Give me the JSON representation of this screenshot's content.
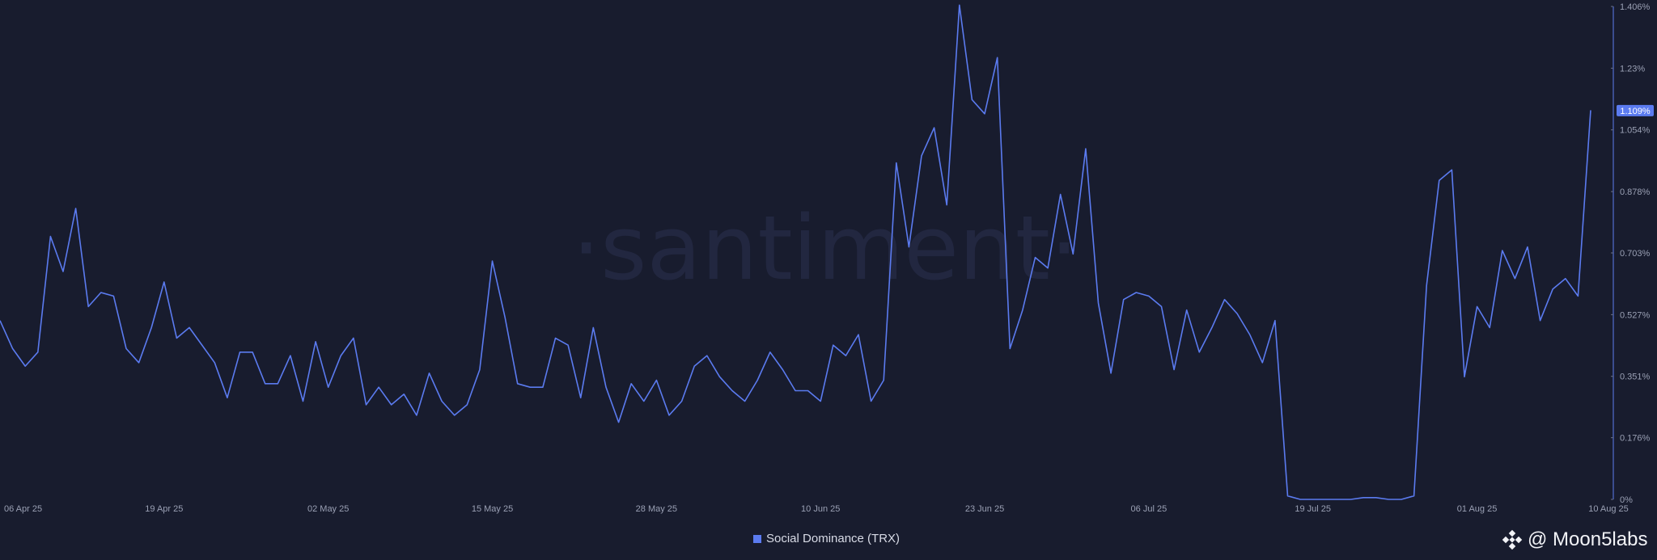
{
  "chart_data": {
    "type": "line",
    "title": "",
    "watermark": "·santiment·",
    "series": [
      {
        "name": "Social Dominance (TRX)",
        "color": "#5b7bf0",
        "values": [
          0.51,
          0.43,
          0.38,
          0.42,
          0.75,
          0.65,
          0.83,
          0.55,
          0.59,
          0.58,
          0.43,
          0.39,
          0.49,
          0.62,
          0.46,
          0.49,
          0.44,
          0.39,
          0.29,
          0.42,
          0.42,
          0.33,
          0.33,
          0.41,
          0.28,
          0.45,
          0.32,
          0.41,
          0.46,
          0.27,
          0.32,
          0.27,
          0.3,
          0.24,
          0.36,
          0.28,
          0.24,
          0.27,
          0.37,
          0.68,
          0.52,
          0.33,
          0.32,
          0.32,
          0.46,
          0.44,
          0.29,
          0.49,
          0.32,
          0.22,
          0.33,
          0.28,
          0.34,
          0.24,
          0.28,
          0.38,
          0.41,
          0.35,
          0.31,
          0.28,
          0.34,
          0.42,
          0.37,
          0.31,
          0.31,
          0.28,
          0.44,
          0.41,
          0.47,
          0.28,
          0.34,
          0.96,
          0.72,
          0.98,
          1.06,
          0.84,
          1.41,
          1.14,
          1.1,
          1.26,
          0.43,
          0.54,
          0.69,
          0.66,
          0.87,
          0.7,
          1.0,
          0.56,
          0.36,
          0.57,
          0.59,
          0.58,
          0.55,
          0.37,
          0.54,
          0.42,
          0.49,
          0.57,
          0.53,
          0.47,
          0.39,
          0.51,
          0.01,
          0.0,
          0.0,
          0.0,
          0.0,
          0.0,
          0.005,
          0.005,
          0.0,
          0.0,
          0.01,
          0.61,
          0.91,
          0.94,
          0.35,
          0.55,
          0.49,
          0.71,
          0.63,
          0.72,
          0.51,
          0.6,
          0.63,
          0.58,
          1.11
        ]
      }
    ],
    "x_tick_labels": [
      "06 Apr 25",
      "19 Apr 25",
      "02 May 25",
      "15 May 25",
      "28 May 25",
      "10 Jun 25",
      "23 Jun 25",
      "06 Jul 25",
      "19 Jul 25",
      "01 Aug 25",
      "10 Aug 25"
    ],
    "x_tick_index": [
      0,
      13,
      26,
      39,
      52,
      65,
      78,
      91,
      104,
      117,
      126
    ],
    "y_tick_labels": [
      "0%",
      "0.176%",
      "0.351%",
      "0.527%",
      "0.703%",
      "0.878%",
      "1.054%",
      "1.23%",
      "1.406%"
    ],
    "y_tick_values": [
      0,
      0.176,
      0.351,
      0.527,
      0.703,
      0.878,
      1.054,
      1.23,
      1.406
    ],
    "ylim": [
      0,
      1.406
    ],
    "current_value_label": "1.109%",
    "current_value": 1.109,
    "grid": false,
    "legend_position": "bottom-center"
  },
  "legend": {
    "label": "Social Dominance (TRX)",
    "color": "#5b7bf0"
  },
  "brand": {
    "text": "@ Moon5labs"
  }
}
